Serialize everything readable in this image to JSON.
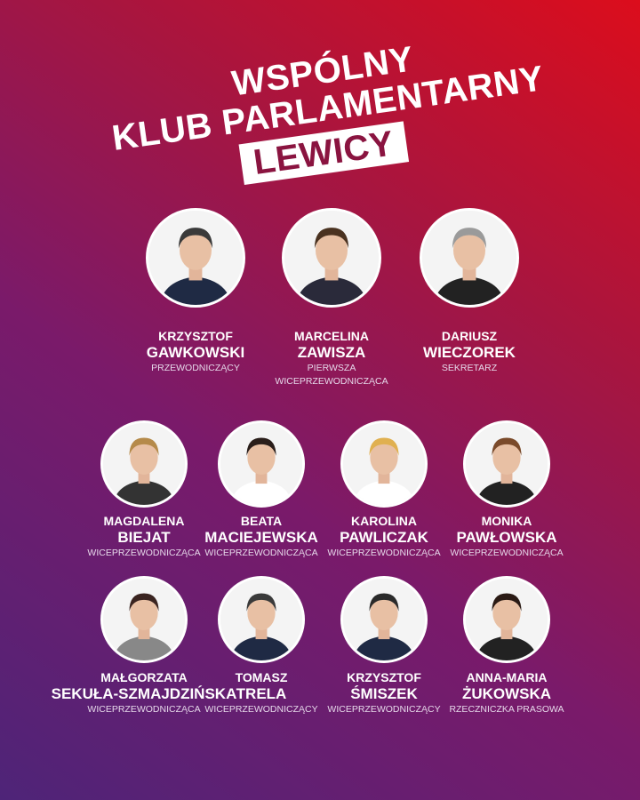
{
  "title": {
    "line1": "WSPÓLNY",
    "line2": "KLUB PARLAMENTARNY",
    "line3": "LEWICY"
  },
  "colors": {
    "gradient_start": "#4e2478",
    "gradient_end": "#dc0d1c",
    "title_box_text": "#8a1440"
  },
  "members": [
    {
      "first": "KRZYSZTOF",
      "last": "GAWKOWSKI",
      "role": [
        "PRZEWODNICZĄCY"
      ]
    },
    {
      "first": "MARCELINA",
      "last": "ZAWISZA",
      "role": [
        "PIERWSZA",
        "WICEPRZEWODNICZĄCA"
      ]
    },
    {
      "first": "DARIUSZ",
      "last": "WIECZOREK",
      "role": [
        "SEKRETARZ"
      ]
    },
    {
      "first": "MAGDALENA",
      "last": "BIEJAT",
      "role": [
        "WICEPRZEWODNICZĄCA"
      ]
    },
    {
      "first": "BEATA",
      "last": "MACIEJEWSKA",
      "role": [
        "WICEPRZEWODNICZĄCA"
      ]
    },
    {
      "first": "KAROLINA",
      "last": "PAWLICZAK",
      "role": [
        "WICEPRZEWODNICZĄCA"
      ]
    },
    {
      "first": "MONIKA",
      "last": "PAWŁOWSKA",
      "role": [
        "WICEPRZEWODNICZĄCA"
      ]
    },
    {
      "first": "MAŁGORZATA",
      "last": "SEKUŁA-SZMAJDZIŃSKA",
      "role": [
        "WICEPRZEWODNICZĄCA"
      ]
    },
    {
      "first": "TOMASZ",
      "last": "TRELA",
      "role": [
        "WICEPRZEWODNICZĄCY"
      ]
    },
    {
      "first": "KRZYSZTOF",
      "last": "ŚMISZEK",
      "role": [
        "WICEPRZEWODNICZĄCY"
      ]
    },
    {
      "first": "ANNA-MARIA",
      "last": "ŻUKOWSKA",
      "role": [
        "RZECZNICZKA PRASOWA"
      ]
    }
  ]
}
